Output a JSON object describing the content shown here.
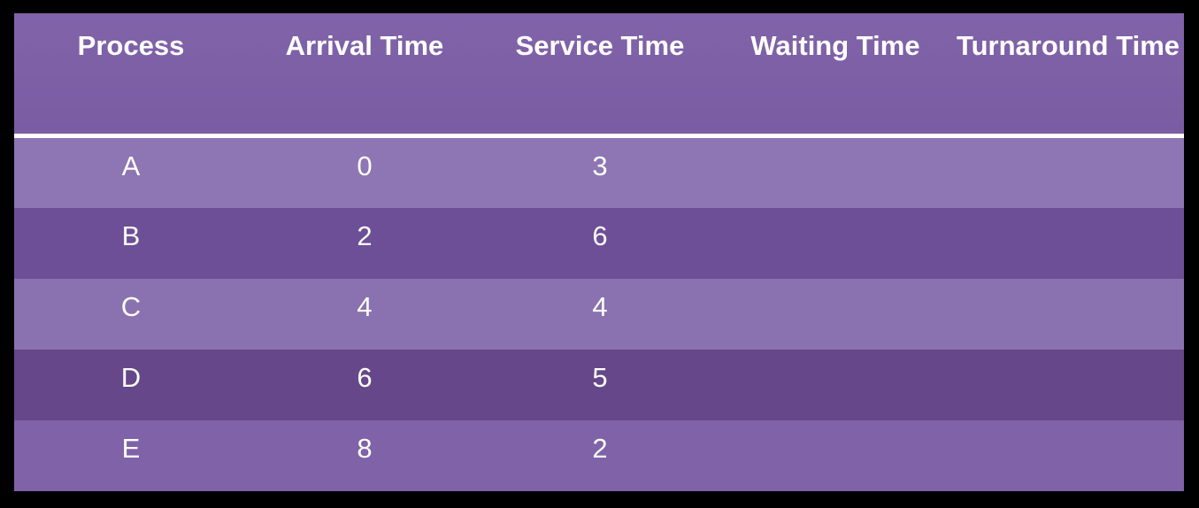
{
  "table": {
    "headers": [
      "Process",
      "Arrival Time",
      "Service Time",
      "Waiting Time",
      "Turnaround Time"
    ],
    "rows": [
      {
        "process": "A",
        "arrival": "0",
        "service": "3",
        "waiting": "",
        "turnaround": ""
      },
      {
        "process": "B",
        "arrival": "2",
        "service": "6",
        "waiting": "",
        "turnaround": ""
      },
      {
        "process": "C",
        "arrival": "4",
        "service": "4",
        "waiting": "",
        "turnaround": ""
      },
      {
        "process": "D",
        "arrival": "6",
        "service": "5",
        "waiting": "",
        "turnaround": ""
      },
      {
        "process": "E",
        "arrival": "8",
        "service": "2",
        "waiting": "",
        "turnaround": ""
      }
    ],
    "colors": {
      "header": "#7d60a6",
      "row_light": "#8a73b0",
      "row_dark": "#6c4d96",
      "row_a": "#8e78b4",
      "row_d": "#664789",
      "row_e": "#7f62a8"
    }
  }
}
